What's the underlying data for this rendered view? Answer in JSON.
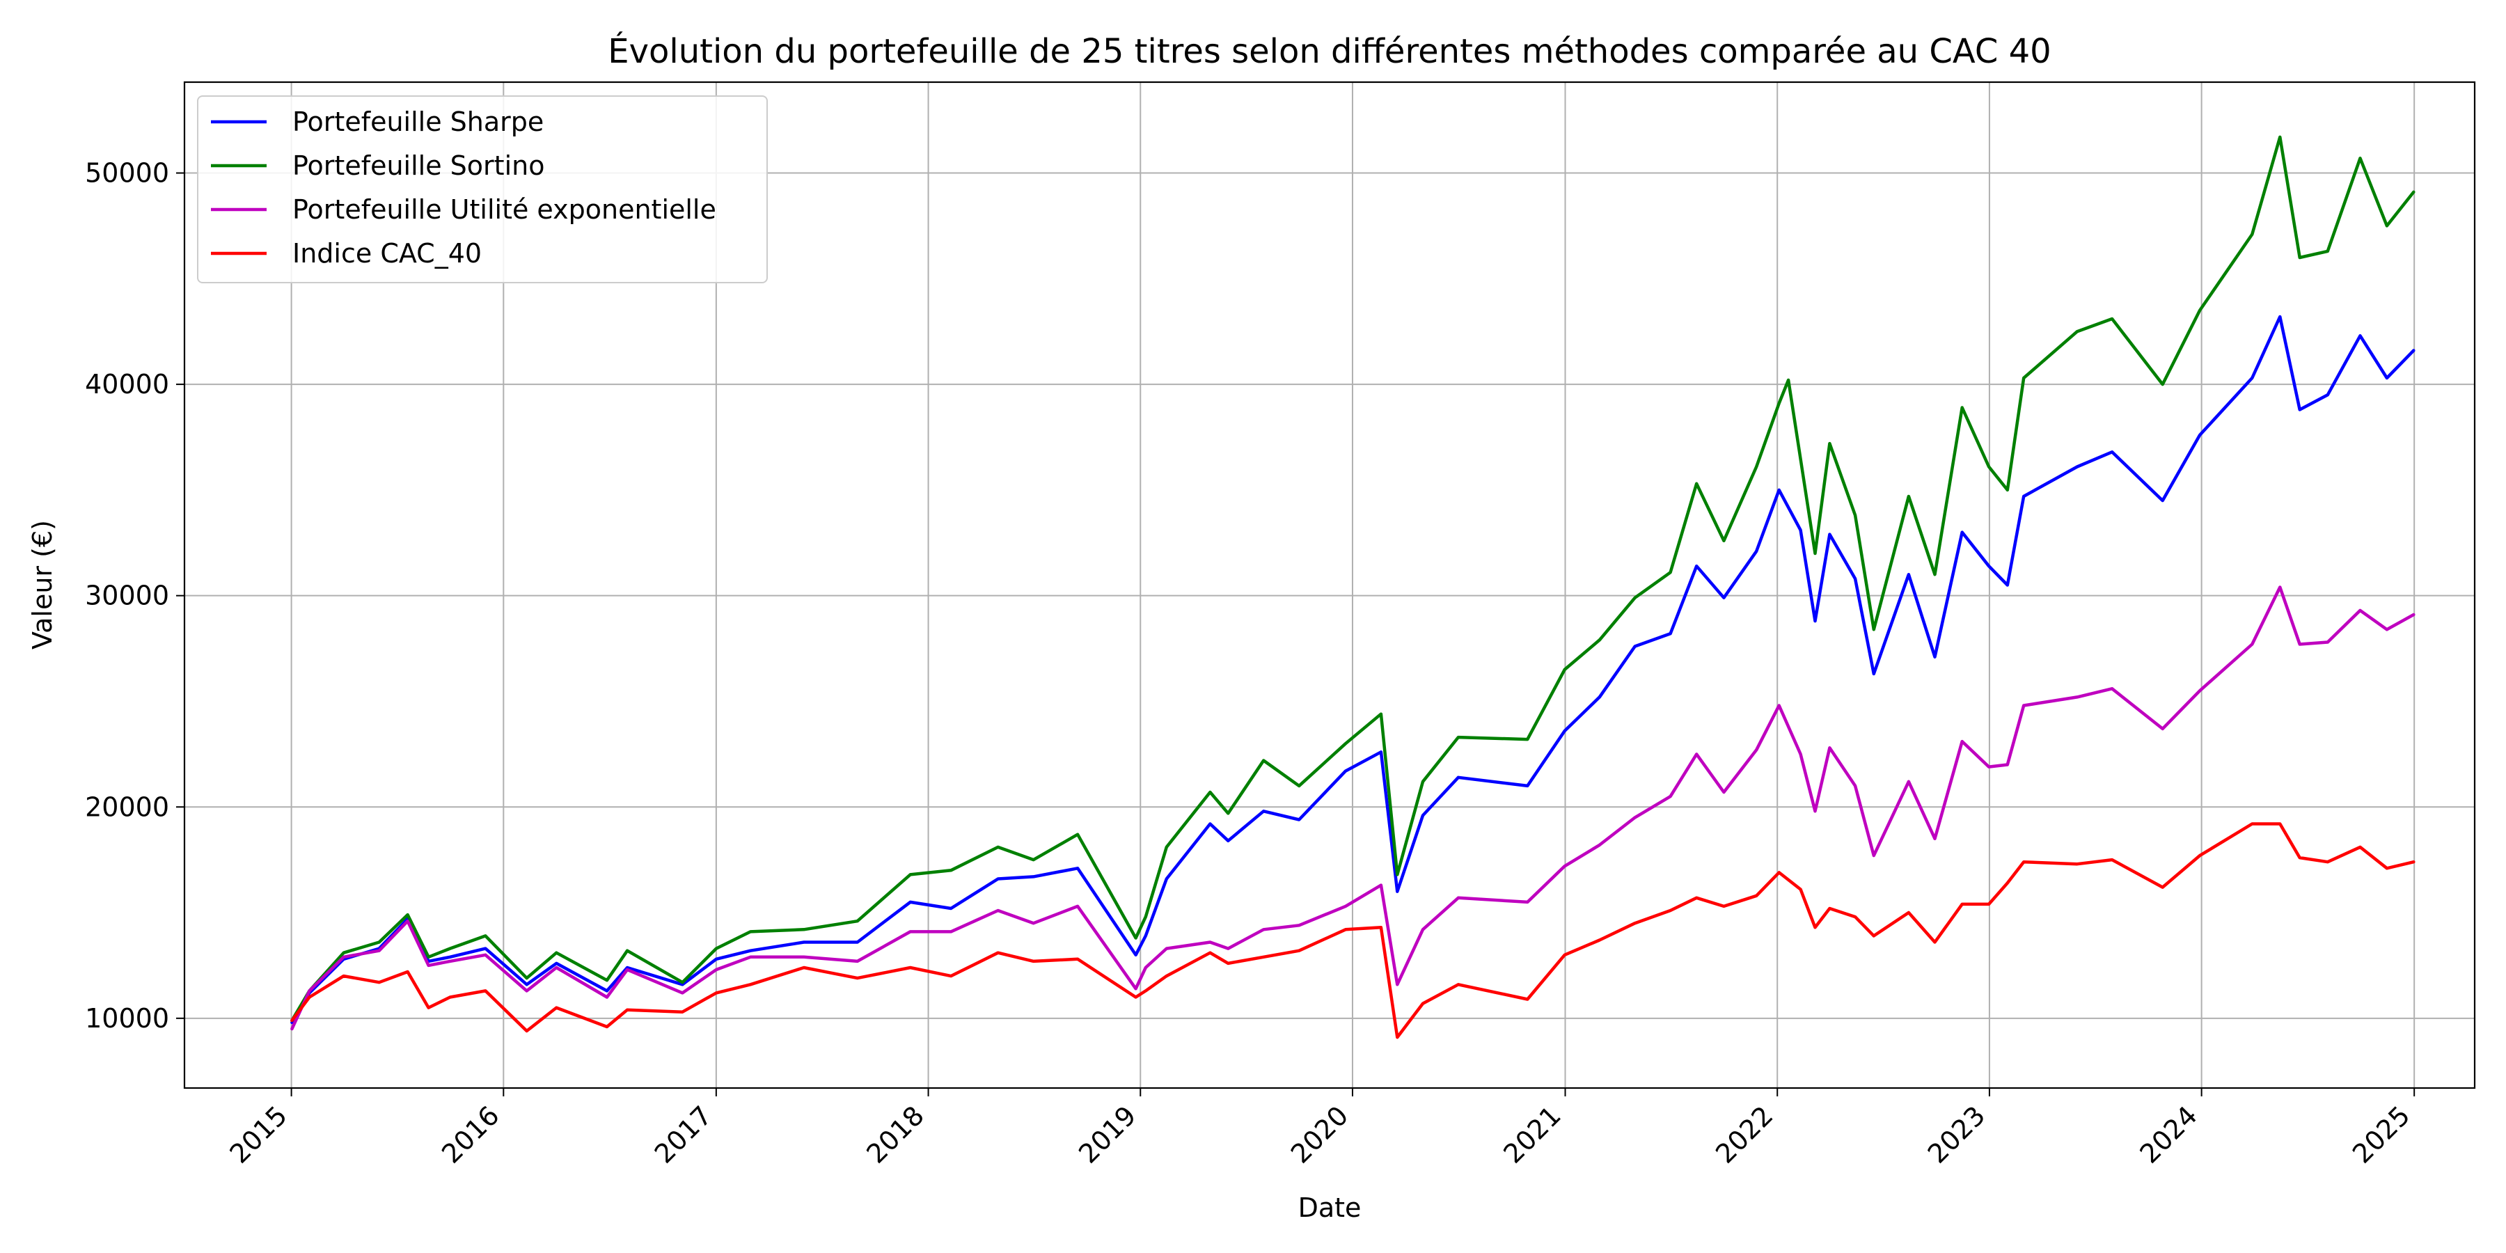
{
  "chart_data": {
    "type": "line",
    "title": "Évolution du portefeuille de 25 titres selon différentes méthodes comparée au CAC 40",
    "xlabel": "Date",
    "ylabel": "Valeur (€)",
    "xlim": [
      "2014-07-01",
      "2025-04-15"
    ],
    "ylim": [
      6700,
      54300
    ],
    "grid": true,
    "legend_position": "upper-left",
    "x_ticks": [
      {
        "date": "2015-01-01",
        "label": "2015"
      },
      {
        "date": "2016-01-01",
        "label": "2016"
      },
      {
        "date": "2017-01-01",
        "label": "2017"
      },
      {
        "date": "2018-01-01",
        "label": "2018"
      },
      {
        "date": "2019-01-01",
        "label": "2019"
      },
      {
        "date": "2020-01-01",
        "label": "2020"
      },
      {
        "date": "2021-01-01",
        "label": "2021"
      },
      {
        "date": "2022-01-01",
        "label": "2022"
      },
      {
        "date": "2023-01-01",
        "label": "2023"
      },
      {
        "date": "2024-01-01",
        "label": "2024"
      },
      {
        "date": "2025-01-01",
        "label": "2025"
      }
    ],
    "y_ticks": [
      {
        "value": 10000,
        "label": "10000"
      },
      {
        "value": 20000,
        "label": "20000"
      },
      {
        "value": 30000,
        "label": "30000"
      },
      {
        "value": 40000,
        "label": "40000"
      },
      {
        "value": 50000,
        "label": "50000"
      }
    ],
    "series": [
      {
        "name": "Portefeuille Sharpe",
        "color": "#0000ff",
        "points": [
          [
            "2015-01-02",
            9800
          ],
          [
            "2015-02-01",
            11200
          ],
          [
            "2015-04-01",
            12800
          ],
          [
            "2015-06-01",
            13300
          ],
          [
            "2015-07-20",
            14700
          ],
          [
            "2015-08-25",
            12700
          ],
          [
            "2015-10-01",
            12900
          ],
          [
            "2015-12-01",
            13300
          ],
          [
            "2016-02-10",
            11600
          ],
          [
            "2016-04-01",
            12600
          ],
          [
            "2016-06-27",
            11300
          ],
          [
            "2016-08-01",
            12400
          ],
          [
            "2016-11-04",
            11600
          ],
          [
            "2017-01-01",
            12800
          ],
          [
            "2017-03-01",
            13200
          ],
          [
            "2017-06-01",
            13600
          ],
          [
            "2017-09-01",
            13600
          ],
          [
            "2017-12-01",
            15500
          ],
          [
            "2018-02-09",
            15200
          ],
          [
            "2018-05-01",
            16600
          ],
          [
            "2018-07-01",
            16700
          ],
          [
            "2018-09-15",
            17100
          ],
          [
            "2018-12-24",
            13000
          ],
          [
            "2019-01-10",
            13900
          ],
          [
            "2019-02-15",
            16600
          ],
          [
            "2019-05-01",
            19200
          ],
          [
            "2019-06-01",
            18400
          ],
          [
            "2019-08-01",
            19800
          ],
          [
            "2019-10-01",
            19400
          ],
          [
            "2019-12-20",
            21700
          ],
          [
            "2020-02-19",
            22600
          ],
          [
            "2020-03-18",
            16000
          ],
          [
            "2020-05-01",
            19600
          ],
          [
            "2020-07-01",
            21400
          ],
          [
            "2020-10-28",
            21000
          ],
          [
            "2020-12-31",
            23600
          ],
          [
            "2021-03-01",
            25200
          ],
          [
            "2021-05-01",
            27600
          ],
          [
            "2021-07-01",
            28200
          ],
          [
            "2021-08-15",
            31400
          ],
          [
            "2021-10-01",
            29900
          ],
          [
            "2021-11-26",
            32100
          ],
          [
            "2022-01-04",
            35000
          ],
          [
            "2022-02-10",
            33100
          ],
          [
            "2022-03-07",
            28800
          ],
          [
            "2022-04-01",
            32900
          ],
          [
            "2022-05-15",
            30800
          ],
          [
            "2022-06-16",
            26300
          ],
          [
            "2022-08-15",
            31000
          ],
          [
            "2022-09-29",
            27100
          ],
          [
            "2022-11-15",
            33000
          ],
          [
            "2022-12-31",
            31400
          ],
          [
            "2023-02-01",
            30500
          ],
          [
            "2023-03-01",
            34700
          ],
          [
            "2023-06-01",
            36100
          ],
          [
            "2023-07-31",
            36800
          ],
          [
            "2023-10-26",
            34500
          ],
          [
            "2023-12-29",
            37600
          ],
          [
            "2024-03-28",
            40300
          ],
          [
            "2024-05-15",
            43200
          ],
          [
            "2024-06-18",
            38800
          ],
          [
            "2024-08-05",
            39500
          ],
          [
            "2024-09-30",
            42300
          ],
          [
            "2024-11-15",
            40300
          ],
          [
            "2024-12-31",
            41600
          ]
        ]
      },
      {
        "name": "Portefeuille Sortino",
        "color": "#008000",
        "points": [
          [
            "2015-01-02",
            9900
          ],
          [
            "2015-02-01",
            11300
          ],
          [
            "2015-04-01",
            13100
          ],
          [
            "2015-06-01",
            13600
          ],
          [
            "2015-07-20",
            14900
          ],
          [
            "2015-08-25",
            12900
          ],
          [
            "2015-10-01",
            13300
          ],
          [
            "2015-12-01",
            13900
          ],
          [
            "2016-02-10",
            11900
          ],
          [
            "2016-04-01",
            13100
          ],
          [
            "2016-06-27",
            11800
          ],
          [
            "2016-08-01",
            13200
          ],
          [
            "2016-11-04",
            11700
          ],
          [
            "2017-01-01",
            13300
          ],
          [
            "2017-03-01",
            14100
          ],
          [
            "2017-06-01",
            14200
          ],
          [
            "2017-09-01",
            14600
          ],
          [
            "2017-12-01",
            16800
          ],
          [
            "2018-02-09",
            17000
          ],
          [
            "2018-05-01",
            18100
          ],
          [
            "2018-07-01",
            17500
          ],
          [
            "2018-09-15",
            18700
          ],
          [
            "2018-12-24",
            13800
          ],
          [
            "2019-01-10",
            14800
          ],
          [
            "2019-02-15",
            18100
          ],
          [
            "2019-05-01",
            20700
          ],
          [
            "2019-06-01",
            19700
          ],
          [
            "2019-08-01",
            22200
          ],
          [
            "2019-10-01",
            21000
          ],
          [
            "2019-12-20",
            23000
          ],
          [
            "2020-02-19",
            24400
          ],
          [
            "2020-03-18",
            16800
          ],
          [
            "2020-05-01",
            21200
          ],
          [
            "2020-07-01",
            23300
          ],
          [
            "2020-10-28",
            23200
          ],
          [
            "2020-12-31",
            26500
          ],
          [
            "2021-03-01",
            27900
          ],
          [
            "2021-05-01",
            29900
          ],
          [
            "2021-07-01",
            31100
          ],
          [
            "2021-08-15",
            35300
          ],
          [
            "2021-10-01",
            32600
          ],
          [
            "2021-11-26",
            36100
          ],
          [
            "2022-01-04",
            39100
          ],
          [
            "2022-01-20",
            40200
          ],
          [
            "2022-03-07",
            32000
          ],
          [
            "2022-04-01",
            37200
          ],
          [
            "2022-05-15",
            33800
          ],
          [
            "2022-06-16",
            28400
          ],
          [
            "2022-08-15",
            34700
          ],
          [
            "2022-09-29",
            31000
          ],
          [
            "2022-11-15",
            38900
          ],
          [
            "2022-12-31",
            36100
          ],
          [
            "2023-02-01",
            35000
          ],
          [
            "2023-03-01",
            40300
          ],
          [
            "2023-06-01",
            42500
          ],
          [
            "2023-07-31",
            43100
          ],
          [
            "2023-10-26",
            40000
          ],
          [
            "2023-12-29",
            43500
          ],
          [
            "2024-03-28",
            47100
          ],
          [
            "2024-05-15",
            51700
          ],
          [
            "2024-06-18",
            46000
          ],
          [
            "2024-08-05",
            46300
          ],
          [
            "2024-09-30",
            50700
          ],
          [
            "2024-11-15",
            47500
          ],
          [
            "2024-12-31",
            49100
          ]
        ]
      },
      {
        "name": "Portefeuille Utilité exponentielle",
        "color": "#bf00bf",
        "points": [
          [
            "2015-01-02",
            9500
          ],
          [
            "2015-02-01",
            11300
          ],
          [
            "2015-04-01",
            12900
          ],
          [
            "2015-06-01",
            13200
          ],
          [
            "2015-07-20",
            14600
          ],
          [
            "2015-08-25",
            12500
          ],
          [
            "2015-10-01",
            12700
          ],
          [
            "2015-12-01",
            13000
          ],
          [
            "2016-02-10",
            11300
          ],
          [
            "2016-04-01",
            12400
          ],
          [
            "2016-06-27",
            11000
          ],
          [
            "2016-08-01",
            12300
          ],
          [
            "2016-11-04",
            11200
          ],
          [
            "2017-01-01",
            12300
          ],
          [
            "2017-03-01",
            12900
          ],
          [
            "2017-06-01",
            12900
          ],
          [
            "2017-09-01",
            12700
          ],
          [
            "2017-12-01",
            14100
          ],
          [
            "2018-02-09",
            14100
          ],
          [
            "2018-05-01",
            15100
          ],
          [
            "2018-07-01",
            14500
          ],
          [
            "2018-09-15",
            15300
          ],
          [
            "2018-12-24",
            11400
          ],
          [
            "2019-01-10",
            12400
          ],
          [
            "2019-02-15",
            13300
          ],
          [
            "2019-05-01",
            13600
          ],
          [
            "2019-06-01",
            13300
          ],
          [
            "2019-08-01",
            14200
          ],
          [
            "2019-10-01",
            14400
          ],
          [
            "2019-12-20",
            15300
          ],
          [
            "2020-02-19",
            16300
          ],
          [
            "2020-03-18",
            11600
          ],
          [
            "2020-05-01",
            14200
          ],
          [
            "2020-07-01",
            15700
          ],
          [
            "2020-10-28",
            15500
          ],
          [
            "2020-12-31",
            17200
          ],
          [
            "2021-03-01",
            18200
          ],
          [
            "2021-05-01",
            19500
          ],
          [
            "2021-07-01",
            20500
          ],
          [
            "2021-08-15",
            22500
          ],
          [
            "2021-10-01",
            20700
          ],
          [
            "2021-11-26",
            22700
          ],
          [
            "2022-01-04",
            24800
          ],
          [
            "2022-02-10",
            22500
          ],
          [
            "2022-03-07",
            19800
          ],
          [
            "2022-04-01",
            22800
          ],
          [
            "2022-05-15",
            21000
          ],
          [
            "2022-06-16",
            17700
          ],
          [
            "2022-08-15",
            21200
          ],
          [
            "2022-09-29",
            18500
          ],
          [
            "2022-11-15",
            23100
          ],
          [
            "2022-12-31",
            21900
          ],
          [
            "2023-02-01",
            22000
          ],
          [
            "2023-03-01",
            24800
          ],
          [
            "2023-06-01",
            25200
          ],
          [
            "2023-07-31",
            25600
          ],
          [
            "2023-10-26",
            23700
          ],
          [
            "2023-12-29",
            25500
          ],
          [
            "2024-03-28",
            27700
          ],
          [
            "2024-05-15",
            30400
          ],
          [
            "2024-06-18",
            27700
          ],
          [
            "2024-08-05",
            27800
          ],
          [
            "2024-09-30",
            29300
          ],
          [
            "2024-11-15",
            28400
          ],
          [
            "2024-12-31",
            29100
          ]
        ]
      },
      {
        "name": "Indice CAC_40",
        "color": "#ff0000",
        "points": [
          [
            "2015-01-02",
            9900
          ],
          [
            "2015-02-01",
            11000
          ],
          [
            "2015-04-01",
            12000
          ],
          [
            "2015-06-01",
            11700
          ],
          [
            "2015-07-20",
            12200
          ],
          [
            "2015-08-25",
            10500
          ],
          [
            "2015-10-01",
            11000
          ],
          [
            "2015-12-01",
            11300
          ],
          [
            "2016-02-10",
            9400
          ],
          [
            "2016-04-01",
            10500
          ],
          [
            "2016-06-27",
            9600
          ],
          [
            "2016-08-01",
            10400
          ],
          [
            "2016-11-04",
            10300
          ],
          [
            "2017-01-01",
            11200
          ],
          [
            "2017-03-01",
            11600
          ],
          [
            "2017-06-01",
            12400
          ],
          [
            "2017-09-01",
            11900
          ],
          [
            "2017-12-01",
            12400
          ],
          [
            "2018-02-09",
            12000
          ],
          [
            "2018-05-01",
            13100
          ],
          [
            "2018-07-01",
            12700
          ],
          [
            "2018-09-15",
            12800
          ],
          [
            "2018-12-24",
            11000
          ],
          [
            "2019-01-10",
            11300
          ],
          [
            "2019-02-15",
            12000
          ],
          [
            "2019-05-01",
            13100
          ],
          [
            "2019-06-01",
            12600
          ],
          [
            "2019-08-01",
            12900
          ],
          [
            "2019-10-01",
            13200
          ],
          [
            "2019-12-20",
            14200
          ],
          [
            "2020-02-19",
            14300
          ],
          [
            "2020-03-18",
            9100
          ],
          [
            "2020-05-01",
            10700
          ],
          [
            "2020-07-01",
            11600
          ],
          [
            "2020-10-28",
            10900
          ],
          [
            "2020-12-31",
            13000
          ],
          [
            "2021-03-01",
            13700
          ],
          [
            "2021-05-01",
            14500
          ],
          [
            "2021-07-01",
            15100
          ],
          [
            "2021-08-15",
            15700
          ],
          [
            "2021-10-01",
            15300
          ],
          [
            "2021-11-26",
            15800
          ],
          [
            "2022-01-04",
            16900
          ],
          [
            "2022-02-10",
            16100
          ],
          [
            "2022-03-07",
            14300
          ],
          [
            "2022-04-01",
            15200
          ],
          [
            "2022-05-15",
            14800
          ],
          [
            "2022-06-16",
            13900
          ],
          [
            "2022-08-15",
            15000
          ],
          [
            "2022-09-29",
            13600
          ],
          [
            "2022-11-15",
            15400
          ],
          [
            "2022-12-31",
            15400
          ],
          [
            "2023-02-01",
            16400
          ],
          [
            "2023-03-01",
            17400
          ],
          [
            "2023-06-01",
            17300
          ],
          [
            "2023-07-31",
            17500
          ],
          [
            "2023-10-26",
            16200
          ],
          [
            "2023-12-29",
            17700
          ],
          [
            "2024-03-28",
            19200
          ],
          [
            "2024-05-15",
            19200
          ],
          [
            "2024-06-18",
            17600
          ],
          [
            "2024-08-05",
            17400
          ],
          [
            "2024-09-30",
            18100
          ],
          [
            "2024-11-15",
            17100
          ],
          [
            "2024-12-31",
            17400
          ]
        ]
      }
    ]
  }
}
